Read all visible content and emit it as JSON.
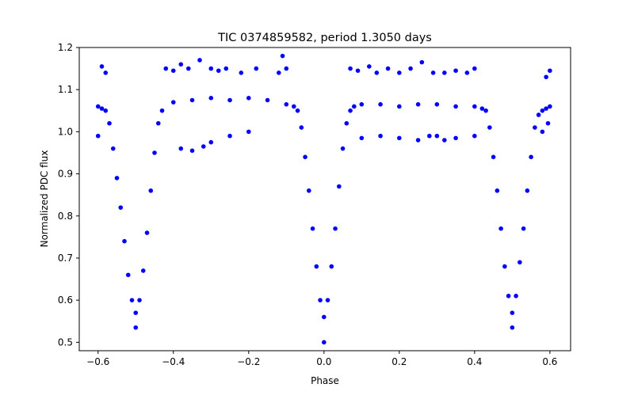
{
  "chart_data": {
    "type": "scatter",
    "title": "TIC 0374859582, period 1.3050 days",
    "xlabel": "Phase",
    "ylabel": "Normalized PDC flux",
    "xlim": [
      -0.65,
      0.655
    ],
    "ylim": [
      0.48,
      1.2
    ],
    "xticks": [
      -0.6,
      -0.4,
      -0.2,
      0.0,
      0.2,
      0.4,
      0.6
    ],
    "xtick_labels": [
      "−0.6",
      "−0.4",
      "−0.2",
      "0.0",
      "0.2",
      "0.4",
      "0.6"
    ],
    "yticks": [
      0.5,
      0.6,
      0.7,
      0.8,
      0.9,
      1.0,
      1.1,
      1.2
    ],
    "ytick_labels": [
      "0.5",
      "0.6",
      "0.7",
      "0.8",
      "0.9",
      "1.0",
      "1.1",
      "1.2"
    ],
    "grid": false,
    "marker_color": "#0000ff",
    "series": [
      {
        "x": [
          -0.6,
          -0.59,
          -0.58,
          -0.57,
          -0.56,
          -0.55,
          -0.54,
          -0.53,
          -0.52,
          -0.51,
          -0.5,
          -0.49,
          -0.48,
          -0.47,
          -0.46,
          -0.45,
          -0.44,
          -0.43,
          -0.4,
          -0.35,
          -0.3,
          -0.25,
          -0.2,
          -0.15,
          -0.1,
          -0.08,
          -0.07,
          -0.06,
          -0.05,
          -0.04,
          -0.03,
          -0.02,
          -0.01,
          0.0,
          0.01,
          0.02,
          0.03,
          0.04,
          0.05,
          0.06,
          0.07,
          0.08,
          0.1,
          0.15,
          0.2,
          0.25,
          0.3,
          0.35,
          0.4,
          0.42,
          0.43,
          0.44,
          0.45,
          0.46,
          0.47,
          0.48,
          0.49,
          0.5,
          0.51,
          0.52,
          0.53,
          0.54,
          0.55,
          0.56,
          0.57,
          0.58,
          0.59,
          0.6,
          -0.59,
          -0.58,
          -0.42,
          -0.4,
          -0.38,
          -0.36,
          -0.33,
          -0.3,
          -0.28,
          -0.26,
          -0.22,
          -0.18,
          -0.12,
          -0.11,
          -0.1,
          -0.38,
          -0.35,
          -0.32,
          -0.3,
          -0.25,
          -0.2,
          0.07,
          0.09,
          0.12,
          0.14,
          0.17,
          0.2,
          0.23,
          0.26,
          0.29,
          0.32,
          0.35,
          0.38,
          0.4,
          0.28,
          0.32,
          0.1,
          0.15,
          0.2,
          0.25,
          0.3,
          0.35,
          0.4,
          0.59,
          0.6,
          -0.6,
          0.595,
          0.58,
          0.0,
          -0.5,
          0.5
        ],
        "y": [
          1.06,
          1.055,
          1.05,
          1.02,
          0.96,
          0.89,
          0.82,
          0.74,
          0.66,
          0.6,
          0.57,
          0.6,
          0.67,
          0.76,
          0.86,
          0.95,
          1.02,
          1.05,
          1.07,
          1.075,
          1.08,
          1.075,
          1.08,
          1.075,
          1.065,
          1.06,
          1.05,
          1.01,
          0.94,
          0.86,
          0.77,
          0.68,
          0.6,
          0.56,
          0.6,
          0.68,
          0.77,
          0.87,
          0.96,
          1.02,
          1.05,
          1.06,
          1.065,
          1.065,
          1.06,
          1.065,
          1.065,
          1.06,
          1.06,
          1.055,
          1.05,
          1.01,
          0.94,
          0.86,
          0.77,
          0.68,
          0.61,
          0.57,
          0.61,
          0.69,
          0.77,
          0.86,
          0.94,
          1.01,
          1.04,
          1.05,
          1.055,
          1.06,
          1.155,
          1.14,
          1.15,
          1.145,
          1.16,
          1.15,
          1.17,
          1.15,
          1.145,
          1.15,
          1.14,
          1.15,
          1.14,
          1.18,
          1.15,
          0.96,
          0.955,
          0.965,
          0.975,
          0.99,
          1.0,
          1.15,
          1.145,
          1.155,
          1.14,
          1.15,
          1.14,
          1.15,
          1.165,
          1.14,
          1.14,
          1.145,
          1.14,
          1.15,
          0.99,
          0.98,
          0.985,
          0.99,
          0.985,
          0.98,
          0.99,
          0.985,
          0.99,
          1.13,
          1.145,
          0.99,
          1.02,
          1.0,
          0.5,
          0.535,
          0.535
        ]
      }
    ]
  }
}
